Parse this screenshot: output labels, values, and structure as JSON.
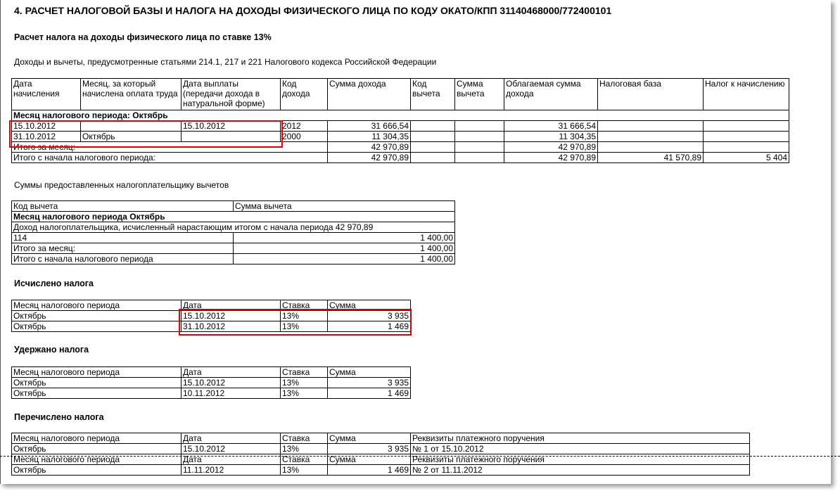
{
  "title": "4. РАСЧЕТ НАЛОГОВОЙ БАЗЫ И НАЛОГА НА ДОХОДЫ ФИЗИЧЕСКОГО ЛИЦА ПО КОДУ ОКАТО/КПП 31140468000/772400101",
  "subtitle": "Расчет налога на доходы физического лица по ставке 13%",
  "income_caption": "Доходы и вычеты, предусмотренные статьями 214.1, 217 и 221 Налогового кодекса Российской Федерации",
  "income_table": {
    "headers": [
      "Дата начисления",
      "Месяц, за который начислена оплата труда",
      "Дата выплаты (передачи дохода в натуральной форме)",
      "Код дохода",
      "Сумма дохода",
      "Код вычета",
      "Сумма вычета",
      "Облагаемая сумма дохода",
      "Налоговая база",
      "Налог к начислению"
    ],
    "group": "Месяц налогового периода: Октябрь",
    "rows": [
      [
        "15.10.2012",
        "",
        "15.10.2012",
        "2012",
        "31 666,54",
        "",
        "",
        "31 666,54",
        "",
        ""
      ],
      [
        "31.10.2012",
        "Октябрь",
        "",
        "2000",
        "11 304,35",
        "",
        "",
        "11 304,35",
        "",
        ""
      ]
    ],
    "total_month": {
      "label": "Итого за месяц:",
      "income": "42 970,89",
      "taxable": "42 970,89",
      "base": "",
      "tax": ""
    },
    "total_period": {
      "label": "Итого с начала налогового периода:",
      "income": "42 970,89",
      "taxable": "42 970,89",
      "base": "41 570,89",
      "tax": "5 404"
    }
  },
  "deductions_caption": "Суммы предоставленных налогоплательщику вычетов",
  "deductions_table": {
    "headers": [
      "Код вычета",
      "Сумма вычета"
    ],
    "group": "Месяц налогового периода Октябрь",
    "note": "Доход налогоплательщика, исчисленный нарастающим итогом с начала периода 42 970,89",
    "rows": [
      [
        "114",
        "1 400,00"
      ],
      [
        "Итого за месяц:",
        "1 400,00"
      ],
      [
        "Итого с начала налогового периода",
        "1 400,00"
      ]
    ]
  },
  "calculated": {
    "caption": "Исчислено налога",
    "headers": [
      "Месяц налогового периода",
      "Дата",
      "Ставка",
      "Сумма"
    ],
    "rows": [
      [
        "Октябрь",
        "15.10.2012",
        "13%",
        "3 935"
      ],
      [
        "Октябрь",
        "31.10.2012",
        "13%",
        "1 469"
      ]
    ]
  },
  "withheld": {
    "caption": "Удержано налога",
    "headers": [
      "Месяц налогового периода",
      "Дата",
      "Ставка",
      "Сумма"
    ],
    "rows": [
      [
        "Октябрь",
        "15.10.2012",
        "13%",
        "3 935"
      ],
      [
        "Октябрь",
        "10.11.2012",
        "13%",
        "1 469"
      ]
    ]
  },
  "transferred": {
    "caption": "Перечислено налога",
    "headers": [
      "Месяц налогового периода",
      "Дата",
      "Ставка",
      "Сумма",
      "Реквизиты платежного поручения"
    ],
    "blocks": [
      [
        "Октябрь",
        "15.10.2012",
        "13%",
        "3 935",
        "№ 1 от 15.10.2012"
      ],
      [
        "Октябрь",
        "11.11.2012",
        "13%",
        "1 469",
        "№ 2 от 11.11.2012"
      ]
    ]
  },
  "highlight_color": "#e00000"
}
